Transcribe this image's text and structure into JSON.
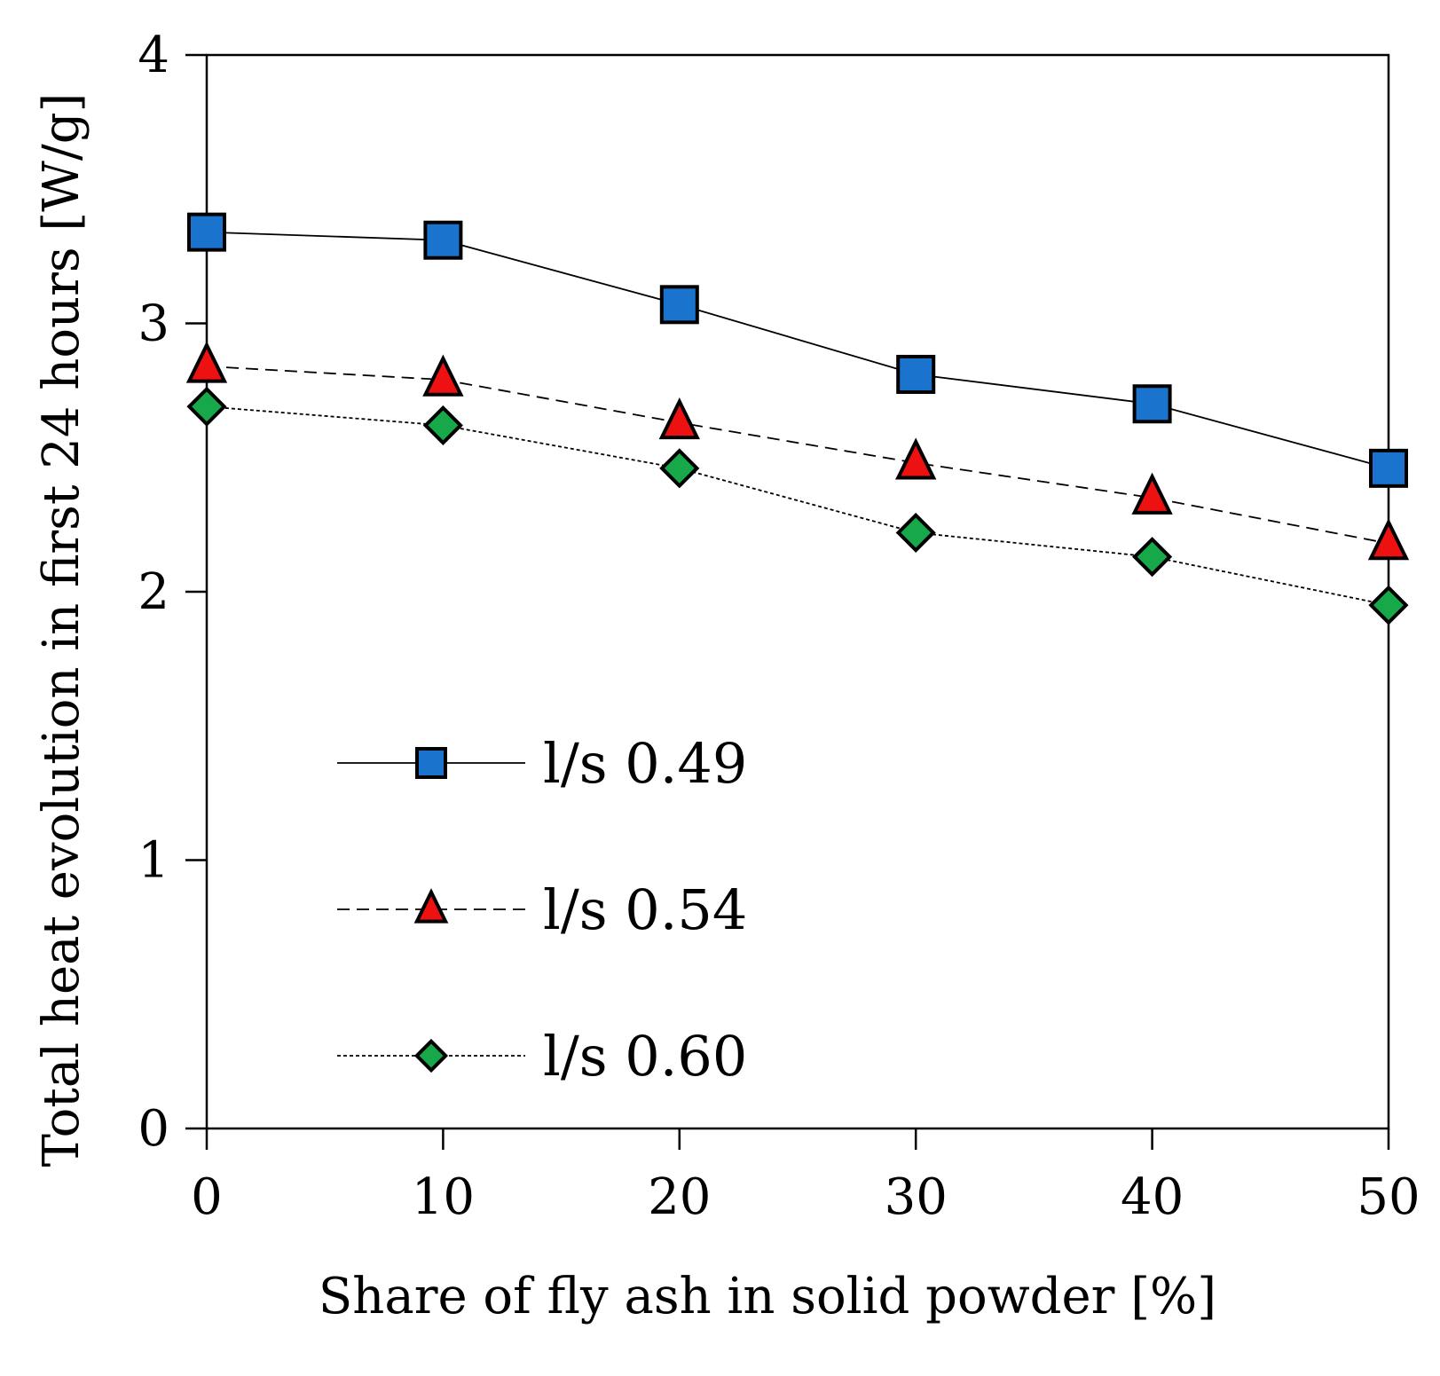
{
  "chart_data": {
    "type": "line",
    "title": "",
    "xlabel": "Share of fly ash in solid powder [%]",
    "ylabel": "Total heat evolution in first 24 hours [W/g]",
    "x": [
      0,
      10,
      20,
      30,
      40,
      50
    ],
    "x_tick_labels": [
      "0",
      "10",
      "20",
      "30",
      "40",
      "50"
    ],
    "y_tick_labels": [
      "0",
      "1",
      "2",
      "3",
      "4"
    ],
    "y_ticks": [
      0,
      1,
      2,
      3,
      4
    ],
    "xlim": [
      0,
      50
    ],
    "ylim": [
      0,
      4
    ],
    "grid": false,
    "legend_position": "bottom-left",
    "series": [
      {
        "name": "l/s 0.49",
        "values": [
          3.34,
          3.31,
          3.07,
          2.81,
          2.7,
          2.46
        ],
        "marker": "square",
        "line": "solid",
        "color": "#1a73cc"
      },
      {
        "name": "l/s 0.54",
        "values": [
          2.84,
          2.79,
          2.63,
          2.48,
          2.35,
          2.18
        ],
        "marker": "triangle",
        "line": "dashed",
        "color": "#ee1111"
      },
      {
        "name": "l/s 0.60",
        "values": [
          2.69,
          2.62,
          2.46,
          2.22,
          2.13,
          1.95
        ],
        "marker": "diamond",
        "line": "dotted",
        "color": "#17a84a"
      }
    ]
  }
}
